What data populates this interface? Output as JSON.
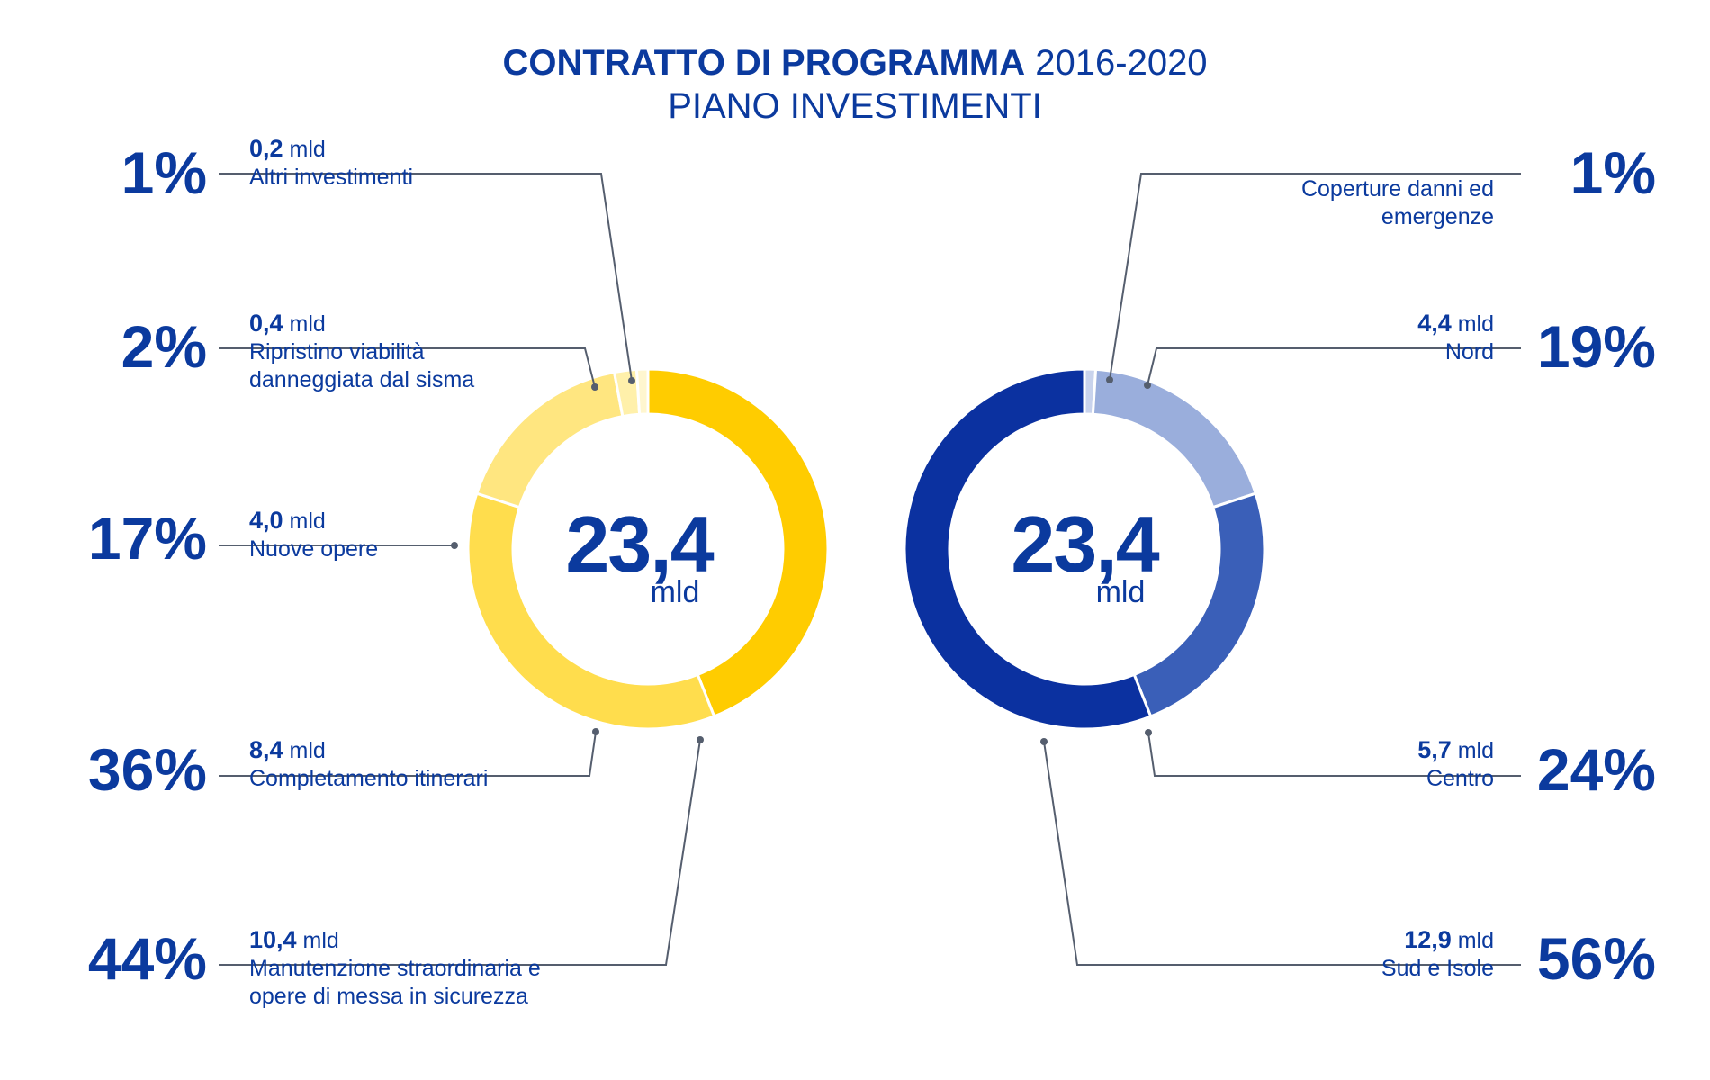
{
  "title": {
    "bold": "CONTRATTO DI PROGRAMMA",
    "years": "2016-2020",
    "subtitle": "PIANO INVESTIMENTI"
  },
  "chart_data": [
    {
      "type": "pie",
      "center_value": "23,4",
      "center_unit": "mld",
      "slices": [
        {
          "label": "Manutenzione straordinaria e opere di messa in sicurezza",
          "amount": "10,4",
          "unit": "mld",
          "percent": 44,
          "percent_label": "44%",
          "color": "#ffcc00"
        },
        {
          "label": "Completamento itinerari",
          "amount": "8,4",
          "unit": "mld",
          "percent": 36,
          "percent_label": "36%",
          "color": "#ffdd4d"
        },
        {
          "label": "Nuove opere",
          "amount": "4,0",
          "unit": "mld",
          "percent": 17,
          "percent_label": "17%",
          "color": "#ffe680"
        },
        {
          "label": "Ripristino viabilità danneggiata dal sisma",
          "amount": "0,4",
          "unit": "mld",
          "percent": 2,
          "percent_label": "2%",
          "color": "#fff0aa"
        },
        {
          "label": "Altri investimenti",
          "amount": "0,2",
          "unit": "mld",
          "percent": 1,
          "percent_label": "1%",
          "color": "#fff6cf"
        }
      ]
    },
    {
      "type": "pie",
      "center_value": "23,4",
      "center_unit": "mld",
      "slices": [
        {
          "label": "Coperture danni ed emergenze",
          "amount": "",
          "unit": "",
          "percent": 1,
          "percent_label": "1%",
          "color": "#c9d3ec"
        },
        {
          "label": "Nord",
          "amount": "4,4",
          "unit": "mld",
          "percent": 19,
          "percent_label": "19%",
          "color": "#9aaedc"
        },
        {
          "label": "Centro",
          "amount": "5,7",
          "unit": "mld",
          "percent": 24,
          "percent_label": "24%",
          "color": "#3a5fb8"
        },
        {
          "label": "Sud e Isole",
          "amount": "12,9",
          "unit": "mld",
          "percent": 56,
          "percent_label": "56%",
          "color": "#0b31a0"
        }
      ]
    }
  ]
}
